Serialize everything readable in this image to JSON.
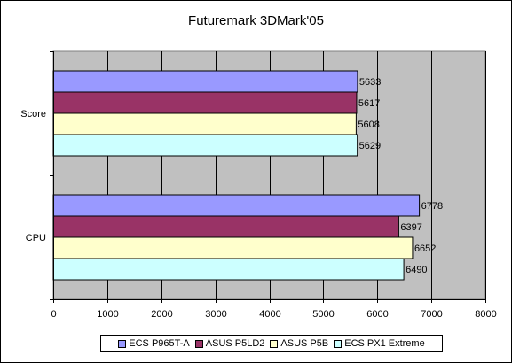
{
  "chart_data": {
    "type": "bar",
    "orientation": "horizontal",
    "title": "Futuremark 3DMark'05",
    "categories": [
      "Score",
      "CPU"
    ],
    "series": [
      {
        "name": "ECS P965T-A",
        "color": "#9999ff",
        "values": [
          5633,
          6778
        ]
      },
      {
        "name": "ASUS P5LD2",
        "color": "#993366",
        "values": [
          5617,
          6397
        ]
      },
      {
        "name": "ASUS P5B",
        "color": "#ffffcc",
        "values": [
          5608,
          6652
        ]
      },
      {
        "name": "ECS PX1 Extreme",
        "color": "#ccffff",
        "values": [
          5629,
          6490
        ]
      }
    ],
    "xlim": [
      0,
      8000
    ],
    "xticks": [
      0,
      1000,
      2000,
      3000,
      4000,
      5000,
      6000,
      7000,
      8000
    ],
    "plot_background": "#c0c0c0",
    "grid": true,
    "legend_position": "bottom"
  }
}
